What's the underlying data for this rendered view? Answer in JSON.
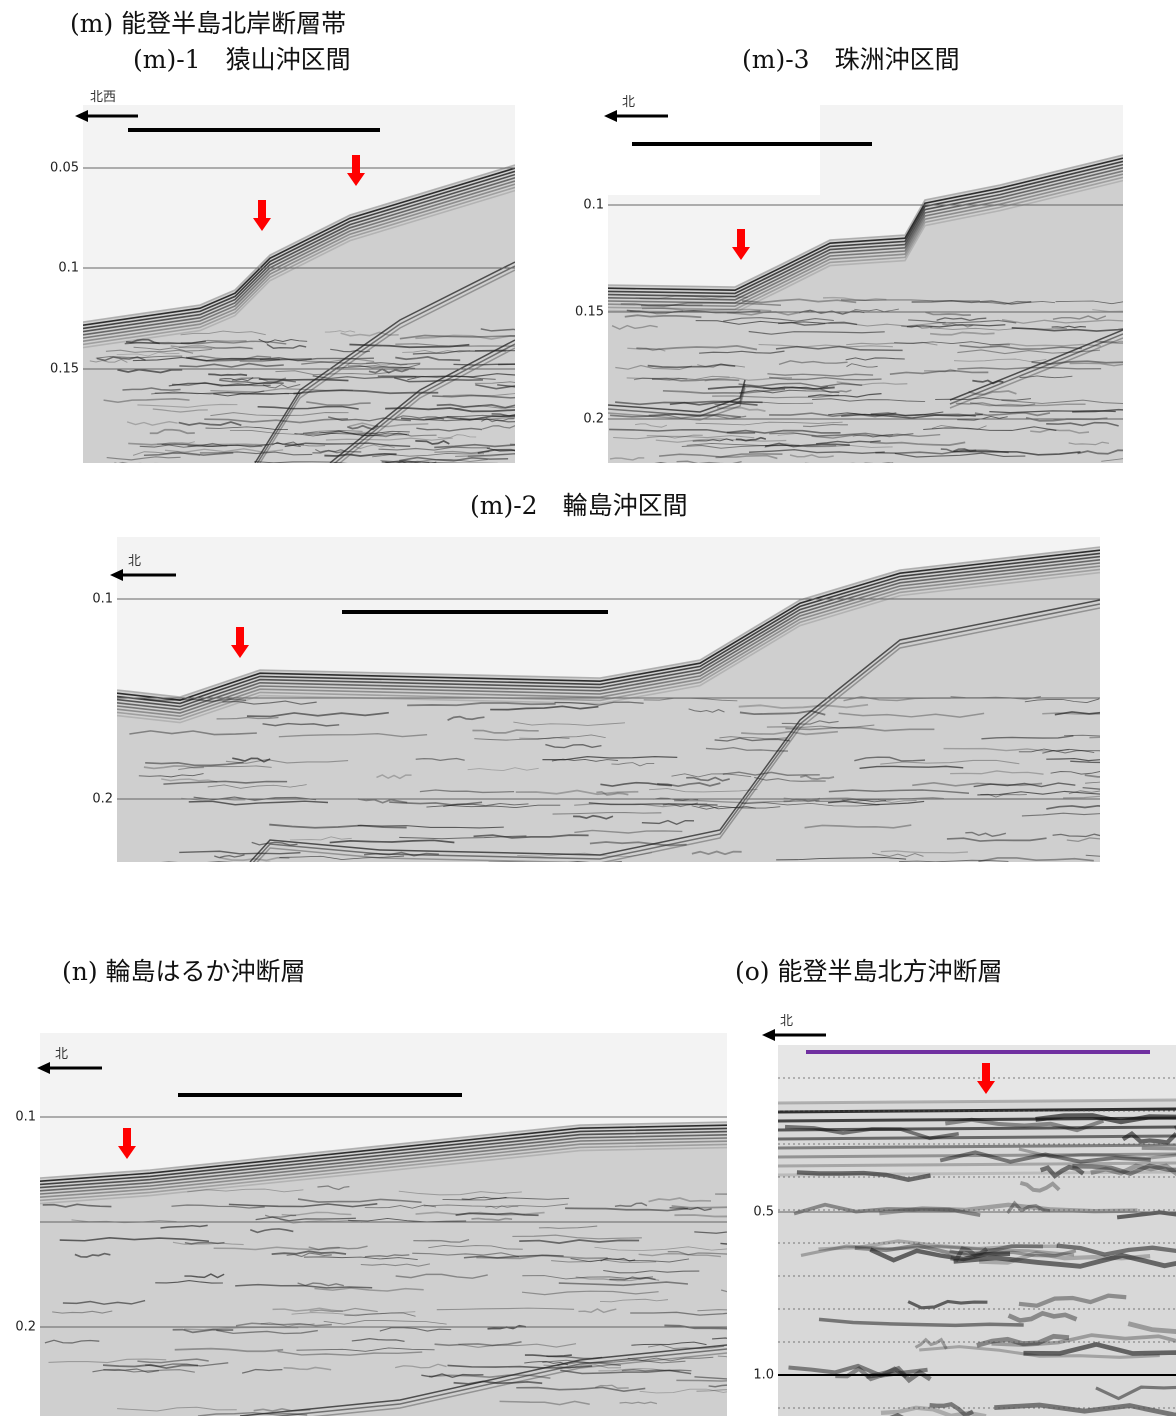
{
  "title": "(m) 能登半島北岸断層帯",
  "panels": [
    {
      "title": "(m)-1　猿山沖区間",
      "direction": "北西",
      "ticks": [
        "0.05",
        "0.1",
        "0.15"
      ]
    },
    {
      "title": "(m)-3　珠洲沖区間",
      "direction": "北",
      "ticks": [
        "0.1",
        "0.15",
        "0.2"
      ]
    },
    {
      "title": "(m)-2　輪島沖区間",
      "direction": "北",
      "ticks": [
        "0.1",
        "0.2"
      ]
    },
    {
      "title": "(n) 輪島はるか沖断層",
      "direction": "北",
      "ticks": [
        "0.1",
        "0.2"
      ]
    },
    {
      "title": "(o) 能登半島北方沖断層",
      "direction": "北",
      "ticks": [
        "0.5",
        "1.0"
      ]
    }
  ]
}
